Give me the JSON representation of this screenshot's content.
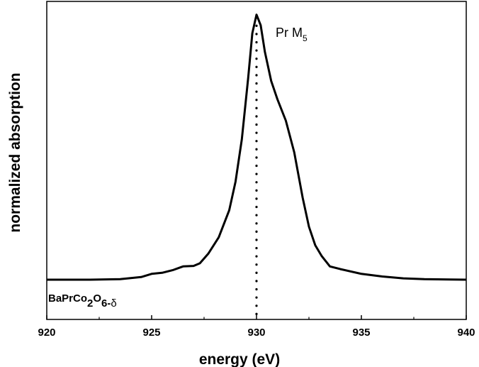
{
  "chart_data": {
    "type": "line",
    "xlabel": "energy (eV)",
    "ylabel": "normalized absorption",
    "xlim": [
      920,
      940
    ],
    "ylim": [
      -0.15,
      1.05
    ],
    "x_ticks": [
      920,
      925,
      930,
      935,
      940
    ],
    "y_ticks_visible": false,
    "grid": false,
    "annotation": {
      "element": "Pr M",
      "edge": "5",
      "x": 930.4
    },
    "sample": {
      "base": "BaPrCo",
      "n1": "2",
      "o": "O",
      "n2": "6-",
      "delta": "δ"
    },
    "marker_line": {
      "x": 930.0,
      "style": "dotted"
    },
    "series": [
      {
        "x": [
          920,
          922,
          923.5,
          924.5,
          925,
          925.5,
          926,
          926.5,
          927,
          927.3,
          927.7,
          928.2,
          928.7,
          929,
          929.3,
          929.6,
          929.8,
          930,
          930.2,
          930.4,
          930.7,
          931,
          931.4,
          931.8,
          932.2,
          932.5,
          932.8,
          933.1,
          933.5,
          934,
          935,
          936,
          937,
          938,
          940
        ],
        "values": [
          0.0,
          0.0,
          0.002,
          0.01,
          0.022,
          0.026,
          0.036,
          0.05,
          0.052,
          0.062,
          0.098,
          0.16,
          0.262,
          0.37,
          0.53,
          0.76,
          0.93,
          1.0,
          0.96,
          0.86,
          0.75,
          0.68,
          0.6,
          0.48,
          0.31,
          0.2,
          0.13,
          0.09,
          0.05,
          0.04,
          0.022,
          0.012,
          0.005,
          0.002,
          0.0
        ]
      }
    ]
  }
}
